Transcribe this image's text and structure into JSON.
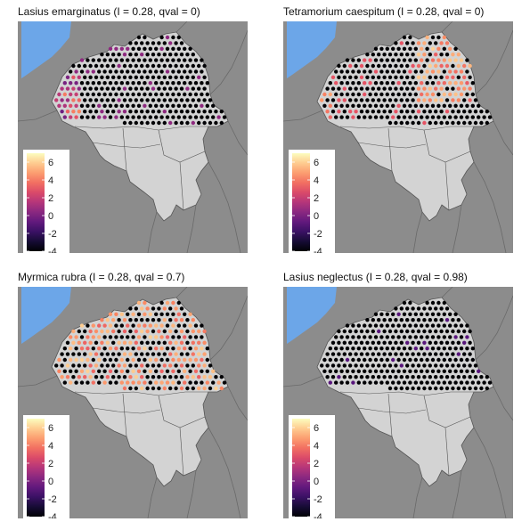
{
  "panels": [
    {
      "species": "Lasius emarginatus",
      "title": "Lasius emarginatus (I = 0.28, qval = 0)",
      "pattern": "west_low"
    },
    {
      "species": "Tetramorium caespitum",
      "title": "Tetramorium caespitum (I = 0.28, qval = 0)",
      "pattern": "east_high"
    },
    {
      "species": "Myrmica rubra",
      "title": "Myrmica rubra (I = 0.28, qval = 0.7)",
      "pattern": "mixed_high"
    },
    {
      "species": "Lasius neglectus",
      "title": "Lasius neglectus (I = 0.28, qval = 0.98)",
      "pattern": "low"
    }
  ],
  "legend": {
    "ticks": [
      "6",
      "4",
      "2",
      "0",
      "-2",
      "-4"
    ],
    "min": -4,
    "max": 7
  },
  "colors": {
    "background": "#8c8c8c",
    "country_fill": "#d3d3d3",
    "sea": "#6ca6e8",
    "border": "#555555",
    "dot_low": "#000004",
    "dot_high": "#fcfdbf"
  }
}
